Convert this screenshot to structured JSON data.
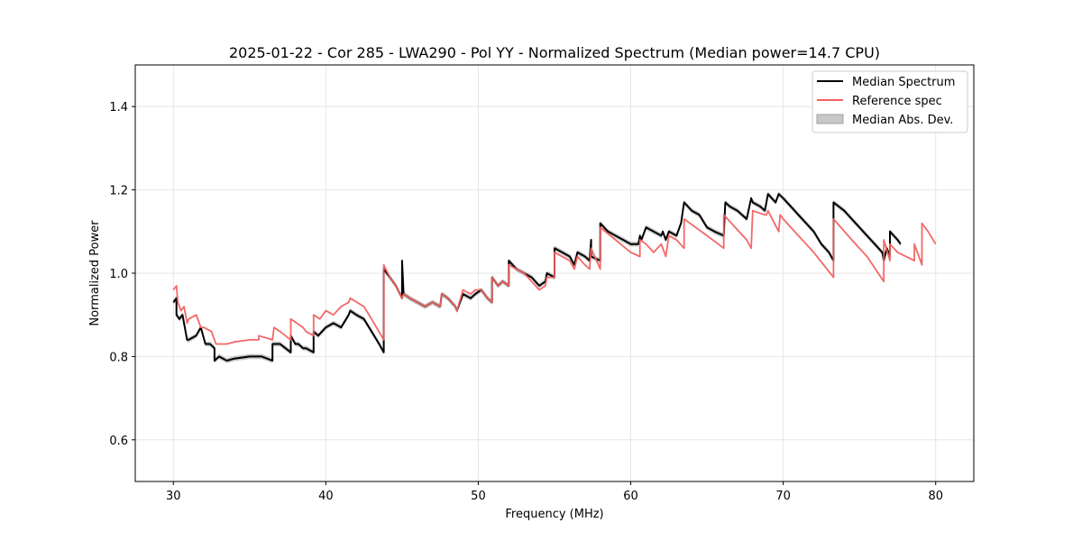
{
  "chart_data": {
    "type": "line",
    "title": "2025-01-22 - Cor 285 - LWA290 - Pol YY - Normalized Spectrum (Median power=14.7 CPU)",
    "xlabel": "Frequency (MHz)",
    "ylabel": "Normalized Power",
    "xlim": [
      27.5,
      82.5
    ],
    "ylim": [
      0.5,
      1.5
    ],
    "xticks": [
      30,
      40,
      50,
      60,
      70,
      80
    ],
    "yticks": [
      0.6,
      0.8,
      1.0,
      1.2,
      1.4
    ],
    "xtick_labels": [
      "30",
      "40",
      "50",
      "60",
      "70",
      "80"
    ],
    "ytick_labels": [
      "0.6",
      "0.8",
      "1.0",
      "1.2",
      "1.4"
    ],
    "grid": true,
    "legend_position": "top-right",
    "legend": [
      "Median Spectrum",
      "Reference spec",
      "Median Abs. Dev."
    ],
    "colors": {
      "median": "#000000",
      "reference": "#f26060",
      "mad_fill": "#b0b0b0",
      "grid": "#e6e6e6"
    },
    "mad_width": 0.006,
    "series": [
      {
        "name": "Median Spectrum",
        "x": [
          30,
          30.2,
          30.2,
          30.4,
          30.6,
          30.8,
          30.9,
          31.0,
          31.5,
          31.8,
          32.1,
          32.4,
          32.7,
          32.7,
          33.0,
          33.5,
          34.0,
          35.0,
          35.8,
          36.5,
          36.5,
          37.0,
          37.7,
          37.7,
          38.0,
          38.2,
          38.5,
          38.7,
          39.2,
          39.2,
          39.5,
          40.0,
          40.5,
          41.0,
          41.5,
          41.6,
          42.0,
          42.5,
          43.0,
          43.5,
          43.8,
          43.8,
          44.2,
          44.6,
          45.0,
          45.0,
          45.1,
          45.5,
          46.0,
          46.5,
          47.0,
          47.5,
          47.6,
          48.0,
          48.5,
          48.6,
          49.0,
          49.5,
          49.8,
          50.2,
          50.6,
          50.9,
          50.9,
          51.3,
          51.6,
          52.0,
          52.0,
          52.5,
          53.0,
          53.5,
          54.0,
          54.4,
          54.5,
          55.0,
          55.0,
          55.5,
          56.0,
          56.3,
          56.5,
          57.0,
          57.3,
          57.4,
          57.4,
          58.0,
          58.0,
          58.5,
          59.0,
          59.5,
          60.0,
          60.5,
          60.6,
          60.7,
          61.0,
          61.5,
          62.0,
          62.1,
          62.3,
          62.5,
          63.0,
          63.3,
          63.5,
          64.0,
          64.5,
          65.0,
          65.5,
          66.1,
          66.2,
          66.5,
          67.0,
          67.6,
          67.9,
          68.0,
          68.5,
          68.8,
          69.0,
          69.5,
          69.7,
          70.0,
          70.5,
          71.0,
          71.5,
          72.0,
          72.5,
          73.0,
          73.3,
          73.3,
          74.0,
          74.5,
          75.0,
          75.5,
          76.0,
          76.5,
          76.6,
          76.8,
          77.0,
          77.0,
          77.5,
          77.7
        ],
        "values": [
          0.93,
          0.94,
          0.9,
          0.89,
          0.9,
          0.86,
          0.84,
          0.84,
          0.85,
          0.87,
          0.83,
          0.83,
          0.82,
          0.79,
          0.8,
          0.79,
          0.795,
          0.8,
          0.8,
          0.79,
          0.83,
          0.83,
          0.81,
          0.85,
          0.83,
          0.83,
          0.82,
          0.82,
          0.81,
          0.86,
          0.85,
          0.87,
          0.88,
          0.87,
          0.9,
          0.91,
          0.9,
          0.89,
          0.86,
          0.83,
          0.81,
          1.01,
          0.99,
          0.97,
          0.94,
          1.03,
          0.95,
          0.94,
          0.93,
          0.92,
          0.93,
          0.92,
          0.95,
          0.94,
          0.92,
          0.91,
          0.95,
          0.94,
          0.95,
          0.96,
          0.94,
          0.93,
          0.99,
          0.97,
          0.98,
          0.97,
          1.03,
          1.01,
          1.0,
          0.99,
          0.97,
          0.98,
          1.0,
          0.99,
          1.06,
          1.05,
          1.04,
          1.02,
          1.05,
          1.04,
          1.03,
          1.08,
          1.04,
          1.03,
          1.12,
          1.1,
          1.09,
          1.08,
          1.07,
          1.07,
          1.09,
          1.08,
          1.11,
          1.1,
          1.09,
          1.1,
          1.08,
          1.1,
          1.09,
          1.12,
          1.17,
          1.15,
          1.14,
          1.11,
          1.1,
          1.09,
          1.17,
          1.16,
          1.15,
          1.13,
          1.18,
          1.17,
          1.16,
          1.15,
          1.19,
          1.17,
          1.19,
          1.18,
          1.16,
          1.14,
          1.12,
          1.1,
          1.07,
          1.05,
          1.03,
          1.17,
          1.15,
          1.13,
          1.11,
          1.09,
          1.07,
          1.05,
          1.03,
          1.06,
          1.04,
          1.1,
          1.08,
          1.07
        ]
      },
      {
        "name": "Reference spec",
        "x": [
          30,
          30.2,
          30.3,
          30.5,
          30.7,
          30.9,
          31.0,
          31.5,
          31.8,
          32.0,
          32.5,
          32.8,
          32.8,
          33.5,
          34.0,
          35.0,
          35.6,
          35.6,
          36.5,
          36.6,
          37.0,
          37.7,
          37.7,
          38.5,
          38.7,
          39.2,
          39.2,
          39.6,
          40.0,
          40.5,
          41.0,
          41.5,
          41.6,
          42.5,
          43.0,
          43.8,
          43.8,
          44.2,
          44.6,
          45.0,
          45.1,
          45.5,
          46.0,
          46.5,
          47.0,
          47.5,
          47.6,
          48.0,
          48.5,
          48.6,
          49.0,
          49.5,
          49.8,
          50.2,
          50.6,
          50.9,
          50.9,
          51.3,
          51.6,
          52.0,
          52.0,
          52.5,
          53.0,
          53.5,
          54.0,
          54.4,
          54.5,
          55.0,
          55.0,
          56.0,
          56.3,
          56.5,
          57.0,
          57.3,
          57.4,
          58.0,
          58.0,
          59.0,
          60.0,
          60.6,
          60.6,
          61.0,
          61.5,
          62.0,
          62.3,
          62.5,
          63.0,
          63.5,
          63.5,
          65.0,
          66.1,
          66.1,
          67.6,
          67.9,
          68.0,
          68.8,
          68.9,
          69.0,
          69.7,
          69.8,
          70.0,
          71.0,
          72.0,
          73.3,
          73.3,
          74.5,
          75.5,
          76.6,
          76.6,
          77.0,
          77.0,
          77.5,
          78.6,
          78.6,
          79.1,
          79.1,
          79.5,
          80.0
        ],
        "values": [
          0.96,
          0.97,
          0.93,
          0.91,
          0.92,
          0.88,
          0.89,
          0.9,
          0.87,
          0.87,
          0.86,
          0.83,
          0.83,
          0.83,
          0.835,
          0.84,
          0.84,
          0.85,
          0.84,
          0.87,
          0.86,
          0.84,
          0.89,
          0.87,
          0.86,
          0.85,
          0.9,
          0.89,
          0.91,
          0.9,
          0.92,
          0.93,
          0.94,
          0.92,
          0.89,
          0.84,
          1.02,
          0.99,
          0.97,
          0.94,
          0.95,
          0.94,
          0.93,
          0.92,
          0.93,
          0.92,
          0.95,
          0.94,
          0.92,
          0.91,
          0.96,
          0.95,
          0.96,
          0.96,
          0.94,
          0.93,
          0.99,
          0.97,
          0.98,
          0.97,
          1.02,
          1.01,
          1.0,
          0.98,
          0.96,
          0.97,
          0.99,
          0.99,
          1.05,
          1.03,
          1.01,
          1.04,
          1.02,
          1.01,
          1.06,
          1.01,
          1.11,
          1.08,
          1.05,
          1.04,
          1.08,
          1.07,
          1.05,
          1.07,
          1.04,
          1.09,
          1.08,
          1.06,
          1.13,
          1.09,
          1.06,
          1.14,
          1.08,
          1.06,
          1.15,
          1.14,
          1.14,
          1.15,
          1.1,
          1.14,
          1.13,
          1.09,
          1.05,
          0.99,
          1.13,
          1.08,
          1.04,
          0.98,
          1.08,
          1.03,
          1.07,
          1.05,
          1.03,
          1.07,
          1.02,
          1.12,
          1.1,
          1.07
        ]
      }
    ]
  }
}
